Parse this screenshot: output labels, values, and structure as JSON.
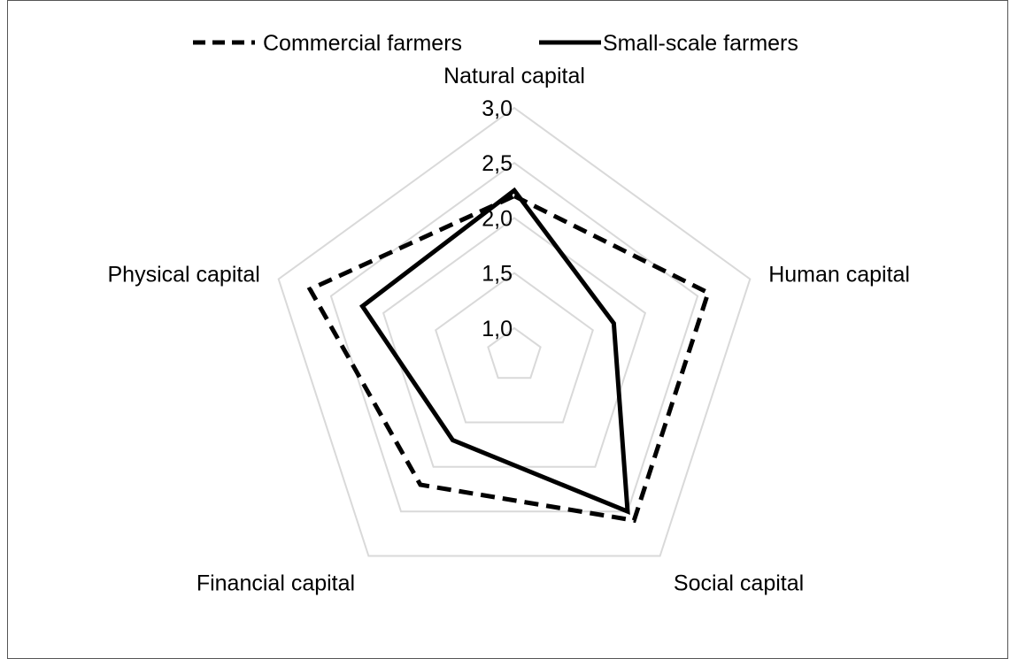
{
  "chart_data": {
    "type": "radar",
    "axes": [
      "Natural capital",
      "Human capital",
      "Social capital",
      "Financial capital",
      "Physical capital"
    ],
    "r_ticks": [
      "1,0",
      "1,5",
      "2,0",
      "2,5",
      "3,0"
    ],
    "r_tick_values": [
      1.0,
      1.5,
      2.0,
      2.5,
      3.0
    ],
    "r_range": [
      0.75,
      3.0
    ],
    "grid": true,
    "legend_position": "top",
    "series": [
      {
        "name": "Commercial farmers",
        "style": "dashed",
        "color": "#000000",
        "values": [
          2.2,
          2.6,
          2.6,
          2.2,
          2.7
        ]
      },
      {
        "name": "Small-scale farmers",
        "style": "solid",
        "color": "#000000",
        "values": [
          2.25,
          1.7,
          2.5,
          1.7,
          2.2
        ]
      }
    ],
    "grid_color": "#d9d9d9"
  }
}
